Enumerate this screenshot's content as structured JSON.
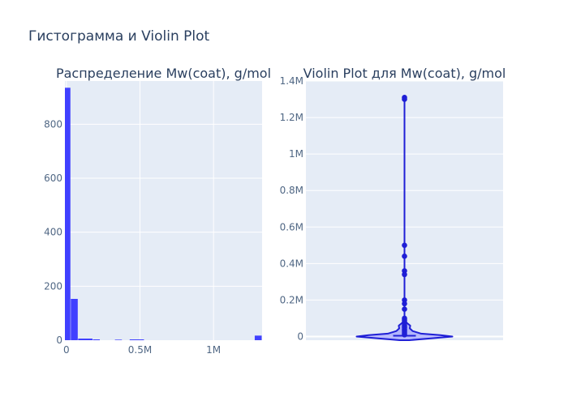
{
  "figure": {
    "title": "Гистограмма и Violin Plot"
  },
  "colors": {
    "plot_bg": "#e5ecf6",
    "grid": "#ffffff",
    "bar": "#4040ff",
    "violin_line": "#1f1fd6",
    "violin_fill": "#7f7fff",
    "points": "#1f1fd6",
    "text": "#2a3f5f",
    "tick": "#506784"
  },
  "chart_data": [
    {
      "type": "bar",
      "title": "Распределение Mw(coat), g/mol",
      "xlabel": "",
      "ylabel": "",
      "grid": true,
      "xlim": [
        -10000,
        1330000
      ],
      "ylim": [
        0,
        960
      ],
      "x_ticks": [
        {
          "value": 0,
          "label": "0"
        },
        {
          "value": 500000,
          "label": "0.5M"
        },
        {
          "value": 1000000,
          "label": "1M"
        }
      ],
      "y_ticks": [
        {
          "value": 0,
          "label": "0"
        },
        {
          "value": 200,
          "label": "200"
        },
        {
          "value": 400,
          "label": "400"
        },
        {
          "value": 600,
          "label": "600"
        },
        {
          "value": 800,
          "label": "800"
        }
      ],
      "bin_width": 50000,
      "bins": [
        {
          "x0": -10000,
          "x1": 30000,
          "count": 935
        },
        {
          "x0": 30000,
          "x1": 80000,
          "count": 153
        },
        {
          "x0": 80000,
          "x1": 180000,
          "count": 6
        },
        {
          "x0": 180000,
          "x1": 230000,
          "count": 3
        },
        {
          "x0": 330000,
          "x1": 380000,
          "count": 2
        },
        {
          "x0": 430000,
          "x1": 530000,
          "count": 3
        },
        {
          "x0": 1280000,
          "x1": 1330000,
          "count": 17
        }
      ]
    },
    {
      "type": "violin",
      "title": "Violin Plot для Mw(coat), g/mol",
      "xlabel": "",
      "ylabel": "",
      "grid": true,
      "ylim": [
        -20000,
        1400000
      ],
      "y_ticks": [
        {
          "value": 0,
          "label": "0"
        },
        {
          "value": 200000,
          "label": "0.2M"
        },
        {
          "value": 400000,
          "label": "0.4M"
        },
        {
          "value": 600000,
          "label": "0.6M"
        },
        {
          "value": 800000,
          "label": "0.8M"
        },
        {
          "value": 1000000,
          "label": "1M"
        },
        {
          "value": 1200000,
          "label": "1.2M"
        },
        {
          "value": 1400000,
          "label": "1.4M"
        }
      ],
      "outer_points": [
        1300000,
        1310000,
        500000,
        440000,
        360000,
        340000,
        200000,
        180000,
        150000,
        100000,
        90000,
        80000,
        70000,
        60000,
        50000,
        40000,
        30000,
        20000,
        10000
      ],
      "density": [
        {
          "y": -20000,
          "w": 0.1
        },
        {
          "y": -10000,
          "w": 0.55
        },
        {
          "y": 0,
          "w": 1.0
        },
        {
          "y": 8000,
          "w": 0.75
        },
        {
          "y": 16000,
          "w": 0.35
        },
        {
          "y": 30000,
          "w": 0.17
        },
        {
          "y": 45000,
          "w": 0.11
        },
        {
          "y": 60000,
          "w": 0.12
        },
        {
          "y": 75000,
          "w": 0.05
        },
        {
          "y": 90000,
          "w": 0.0
        }
      ]
    }
  ]
}
